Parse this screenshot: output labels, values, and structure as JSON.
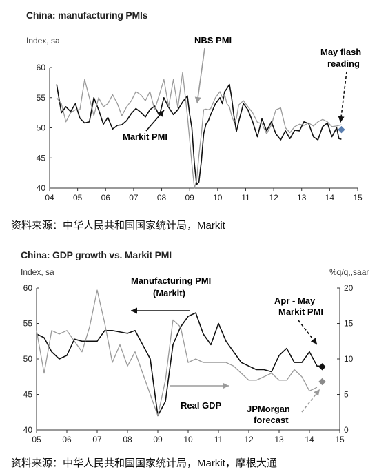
{
  "chart_data": [
    {
      "type": "line",
      "title": "China: manufacturing PMIs",
      "ylabel": "Index, sa",
      "xlabel": "",
      "ylim": [
        40,
        60
      ],
      "xlim": [
        2004,
        2015
      ],
      "y_ticks": [
        "40",
        "45",
        "50",
        "55",
        "60"
      ],
      "x_ticks": [
        "04",
        "05",
        "06",
        "07",
        "08",
        "09",
        "10",
        "11",
        "12",
        "13",
        "14",
        "15"
      ],
      "grid": false,
      "annotations": [
        "NBS PMI",
        "Markit PMI",
        "May flash reading"
      ],
      "series": [
        {
          "name": "Markit PMI",
          "color": "#111111",
          "points": [
            [
              2004.25,
              57.2
            ],
            [
              2004.42,
              52.5
            ],
            [
              2004.58,
              53.5
            ],
            [
              2004.75,
              52.7
            ],
            [
              2004.92,
              54.0
            ],
            [
              2005.08,
              51.6
            ],
            [
              2005.25,
              50.8
            ],
            [
              2005.42,
              51.0
            ],
            [
              2005.58,
              55.0
            ],
            [
              2005.75,
              53.0
            ],
            [
              2005.92,
              50.6
            ],
            [
              2006.08,
              51.7
            ],
            [
              2006.25,
              49.8
            ],
            [
              2006.42,
              50.4
            ],
            [
              2006.58,
              50.5
            ],
            [
              2006.75,
              51.2
            ],
            [
              2006.92,
              52.4
            ],
            [
              2007.08,
              53.2
            ],
            [
              2007.25,
              52.6
            ],
            [
              2007.42,
              51.8
            ],
            [
              2007.58,
              53.0
            ],
            [
              2007.75,
              53.6
            ],
            [
              2007.92,
              52.0
            ],
            [
              2008.08,
              55.0
            ],
            [
              2008.25,
              53.4
            ],
            [
              2008.42,
              52.2
            ],
            [
              2008.58,
              53.0
            ],
            [
              2008.75,
              54.3
            ],
            [
              2008.92,
              55.3
            ],
            [
              2009.0,
              52.2
            ],
            [
              2009.08,
              50.0
            ],
            [
              2009.17,
              44.0
            ],
            [
              2009.25,
              40.6
            ],
            [
              2009.33,
              41.0
            ],
            [
              2009.42,
              44.5
            ],
            [
              2009.5,
              49.0
            ],
            [
              2009.58,
              50.6
            ],
            [
              2009.67,
              51.2
            ],
            [
              2009.75,
              52.2
            ],
            [
              2009.92,
              54.0
            ],
            [
              2010.08,
              55.0
            ],
            [
              2010.17,
              54.0
            ],
            [
              2010.25,
              56.0
            ],
            [
              2010.33,
              56.5
            ],
            [
              2010.42,
              57.2
            ],
            [
              2010.5,
              55.0
            ],
            [
              2010.58,
              52.0
            ],
            [
              2010.67,
              49.4
            ],
            [
              2010.75,
              51.0
            ],
            [
              2010.92,
              54.0
            ],
            [
              2011.08,
              53.0
            ],
            [
              2011.25,
              51.0
            ],
            [
              2011.42,
              48.5
            ],
            [
              2011.58,
              51.5
            ],
            [
              2011.75,
              49.5
            ],
            [
              2011.92,
              51.0
            ],
            [
              2012.08,
              49.0
            ],
            [
              2012.25,
              48.0
            ],
            [
              2012.42,
              49.5
            ],
            [
              2012.58,
              48.2
            ],
            [
              2012.75,
              49.6
            ],
            [
              2012.92,
              49.5
            ],
            [
              2013.08,
              51.0
            ],
            [
              2013.25,
              50.7
            ],
            [
              2013.42,
              48.5
            ],
            [
              2013.58,
              48.0
            ],
            [
              2013.75,
              50.2
            ],
            [
              2013.92,
              50.8
            ],
            [
              2014.08,
              48.5
            ],
            [
              2014.25,
              50.0
            ],
            [
              2014.33,
              48.2
            ],
            [
              2014.42,
              48.1
            ]
          ]
        },
        {
          "name": "NBS PMI",
          "color": "#9a9a9a",
          "points": [
            [
              2004.25,
              55.0
            ],
            [
              2004.42,
              54.0
            ],
            [
              2004.58,
              51.0
            ],
            [
              2004.75,
              52.5
            ],
            [
              2004.92,
              53.0
            ],
            [
              2005.08,
              53.0
            ],
            [
              2005.25,
              58.0
            ],
            [
              2005.42,
              55.0
            ],
            [
              2005.58,
              52.0
            ],
            [
              2005.75,
              55.0
            ],
            [
              2005.92,
              53.5
            ],
            [
              2006.08,
              54.0
            ],
            [
              2006.25,
              55.5
            ],
            [
              2006.42,
              54.0
            ],
            [
              2006.58,
              52.0
            ],
            [
              2006.75,
              53.5
            ],
            [
              2006.92,
              54.5
            ],
            [
              2007.08,
              56.0
            ],
            [
              2007.25,
              55.5
            ],
            [
              2007.42,
              54.5
            ],
            [
              2007.58,
              56.0
            ],
            [
              2007.75,
              53.0
            ],
            [
              2007.92,
              55.5
            ],
            [
              2008.08,
              58.0
            ],
            [
              2008.25,
              53.5
            ],
            [
              2008.42,
              58.0
            ],
            [
              2008.58,
              53.3
            ],
            [
              2008.75,
              59.2
            ],
            [
              2008.92,
              52.0
            ],
            [
              2009.0,
              48.0
            ],
            [
              2009.08,
              44.0
            ],
            [
              2009.17,
              40.0
            ],
            [
              2009.25,
              41.3
            ],
            [
              2009.33,
              45.4
            ],
            [
              2009.42,
              49.0
            ],
            [
              2009.5,
              53.0
            ],
            [
              2009.58,
              53.1
            ],
            [
              2009.67,
              53.0
            ],
            [
              2009.75,
              53.2
            ],
            [
              2009.92,
              55.0
            ],
            [
              2010.08,
              56.0
            ],
            [
              2010.17,
              55.0
            ],
            [
              2010.25,
              55.5
            ],
            [
              2010.33,
              54.0
            ],
            [
              2010.42,
              53.5
            ],
            [
              2010.5,
              52.0
            ],
            [
              2010.58,
              51.0
            ],
            [
              2010.67,
              51.5
            ],
            [
              2010.75,
              53.8
            ],
            [
              2010.92,
              54.5
            ],
            [
              2011.08,
              53.5
            ],
            [
              2011.25,
              52.5
            ],
            [
              2011.42,
              50.9
            ],
            [
              2011.58,
              50.7
            ],
            [
              2011.75,
              49.0
            ],
            [
              2011.92,
              50.5
            ],
            [
              2012.08,
              53.0
            ],
            [
              2012.25,
              53.3
            ],
            [
              2012.42,
              50.0
            ],
            [
              2012.58,
              49.2
            ],
            [
              2012.75,
              50.2
            ],
            [
              2012.92,
              50.6
            ],
            [
              2013.08,
              50.4
            ],
            [
              2013.25,
              50.8
            ],
            [
              2013.42,
              50.3
            ],
            [
              2013.58,
              51.0
            ],
            [
              2013.75,
              51.4
            ],
            [
              2013.92,
              51.0
            ],
            [
              2014.08,
              50.2
            ],
            [
              2014.25,
              50.3
            ],
            [
              2014.33,
              50.4
            ],
            [
              2014.42,
              50.5
            ]
          ]
        }
      ],
      "marker": {
        "name": "May flash reading",
        "x": 2014.42,
        "y": 49.7,
        "color": "#5b7fb0"
      }
    },
    {
      "type": "line",
      "title": "China: GDP growth vs. Markit PMI",
      "ylabel": "Index, sa",
      "y2label": "%q/q,,saar",
      "xlabel": "",
      "ylim": [
        40,
        60
      ],
      "y2lim": [
        0,
        20
      ],
      "xlim": [
        2005,
        2015
      ],
      "y_ticks": [
        "40",
        "45",
        "50",
        "55",
        "60"
      ],
      "y2_ticks": [
        "0",
        "5",
        "10",
        "15",
        "20"
      ],
      "x_ticks": [
        "05",
        "06",
        "07",
        "08",
        "09",
        "10",
        "11",
        "12",
        "13",
        "14",
        "15"
      ],
      "grid": false,
      "annotations": [
        "Manufacturing PMI",
        "(Markit)",
        "Real GDP",
        "Apr - May",
        "Markit PMI",
        "JPMorgan",
        "forecast"
      ],
      "series": [
        {
          "name": "Manufacturing PMI (Markit)",
          "axis": "left",
          "color": "#111111",
          "points": [
            [
              2005.0,
              53.5
            ],
            [
              2005.25,
              53.0
            ],
            [
              2005.5,
              51.0
            ],
            [
              2005.75,
              50.0
            ],
            [
              2006.0,
              50.5
            ],
            [
              2006.25,
              52.8
            ],
            [
              2006.5,
              52.5
            ],
            [
              2006.75,
              52.5
            ],
            [
              2007.0,
              52.5
            ],
            [
              2007.25,
              54.0
            ],
            [
              2007.5,
              54.0
            ],
            [
              2007.75,
              53.8
            ],
            [
              2008.0,
              53.6
            ],
            [
              2008.25,
              54.0
            ],
            [
              2008.5,
              52.0
            ],
            [
              2008.75,
              50.0
            ],
            [
              2009.0,
              42.0
            ],
            [
              2009.25,
              44.0
            ],
            [
              2009.5,
              52.0
            ],
            [
              2009.75,
              54.5
            ],
            [
              2010.0,
              56.0
            ],
            [
              2010.25,
              56.5
            ],
            [
              2010.5,
              53.5
            ],
            [
              2010.75,
              52.0
            ],
            [
              2011.0,
              55.0
            ],
            [
              2011.25,
              52.5
            ],
            [
              2011.5,
              51.0
            ],
            [
              2011.75,
              49.5
            ],
            [
              2012.0,
              49.0
            ],
            [
              2012.25,
              48.5
            ],
            [
              2012.5,
              48.5
            ],
            [
              2012.75,
              48.2
            ],
            [
              2013.0,
              50.5
            ],
            [
              2013.25,
              51.5
            ],
            [
              2013.5,
              49.5
            ],
            [
              2013.75,
              49.5
            ],
            [
              2014.0,
              51.0
            ],
            [
              2014.25,
              49.0
            ],
            [
              2014.42,
              49.0
            ]
          ]
        },
        {
          "name": "Real GDP",
          "axis": "right",
          "color": "#9a9a9a",
          "points": [
            [
              2005.0,
              14.0
            ],
            [
              2005.25,
              8.0
            ],
            [
              2005.5,
              14.0
            ],
            [
              2005.75,
              13.5
            ],
            [
              2006.0,
              14.0
            ],
            [
              2006.25,
              12.5
            ],
            [
              2006.5,
              11.0
            ],
            [
              2006.75,
              14.5
            ],
            [
              2007.0,
              19.7
            ],
            [
              2007.25,
              15.0
            ],
            [
              2007.5,
              9.5
            ],
            [
              2007.75,
              12.0
            ],
            [
              2008.0,
              9.0
            ],
            [
              2008.25,
              11.0
            ],
            [
              2008.5,
              8.0
            ],
            [
              2008.75,
              5.0
            ],
            [
              2009.0,
              2.0
            ],
            [
              2009.25,
              7.0
            ],
            [
              2009.5,
              15.5
            ],
            [
              2009.75,
              14.5
            ],
            [
              2010.0,
              9.5
            ],
            [
              2010.25,
              10.0
            ],
            [
              2010.5,
              9.5
            ],
            [
              2010.75,
              9.5
            ],
            [
              2011.0,
              9.5
            ],
            [
              2011.25,
              9.5
            ],
            [
              2011.5,
              9.0
            ],
            [
              2011.75,
              8.0
            ],
            [
              2012.0,
              7.0
            ],
            [
              2012.25,
              7.0
            ],
            [
              2012.5,
              7.5
            ],
            [
              2012.75,
              8.0
            ],
            [
              2013.0,
              7.0
            ],
            [
              2013.25,
              7.0
            ],
            [
              2013.5,
              8.5
            ],
            [
              2013.75,
              7.5
            ],
            [
              2014.0,
              5.5
            ],
            [
              2014.25,
              6.0
            ]
          ]
        }
      ],
      "markers": [
        {
          "name": "Apr - May Markit PMI",
          "axis": "left",
          "x": 2014.42,
          "y": 48.9,
          "color": "#111111"
        },
        {
          "name": "JPMorgan forecast",
          "axis": "right",
          "x": 2014.42,
          "y": 6.8,
          "color": "#8a8a8a"
        }
      ]
    }
  ],
  "panels": {
    "top": {
      "title": "China: manufacturing PMIs",
      "units": "Index, sa",
      "label_nbs": "NBS PMI",
      "label_markit": "Markit PMI",
      "label_flash_1": "May flash",
      "label_flash_2": "reading",
      "source": "资料来源：中华人民共和国国家统计局，Markit"
    },
    "bottom": {
      "title": "China: GDP growth vs. Markit PMI",
      "units_left": "Index, sa",
      "units_right": "%q/q,,saar",
      "label_pmi_1": "Manufacturing PMI",
      "label_pmi_2": "(Markit)",
      "label_gdp": "Real GDP",
      "label_aprmay_1": "Apr - May",
      "label_aprmay_2": "Markit PMI",
      "label_jpm_1": "JPMorgan",
      "label_jpm_2": "forecast",
      "source": "资料来源：中华人民共和国国家统计局，Markit，摩根大通"
    }
  }
}
